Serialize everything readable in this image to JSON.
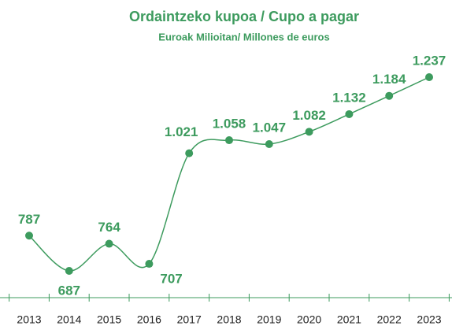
{
  "chart_data": {
    "type": "line",
    "title": "Ordaintzeko kupoa / Cupo a pagar",
    "subtitle": "Euroak Milioitan/ Millones de euros",
    "categories": [
      "2013",
      "2014",
      "2015",
      "2016",
      "2017",
      "2018",
      "2019",
      "2020",
      "2021",
      "2022",
      "2023"
    ],
    "values": [
      787,
      687,
      764,
      707,
      1021,
      1058,
      1047,
      1082,
      1132,
      1184,
      1237
    ],
    "value_labels": [
      "787",
      "687",
      "764",
      "707",
      "1.021",
      "1.058",
      "1.047",
      "1.082",
      "1.132",
      "1.184",
      "1.237"
    ],
    "color": "#3d9b5e"
  }
}
